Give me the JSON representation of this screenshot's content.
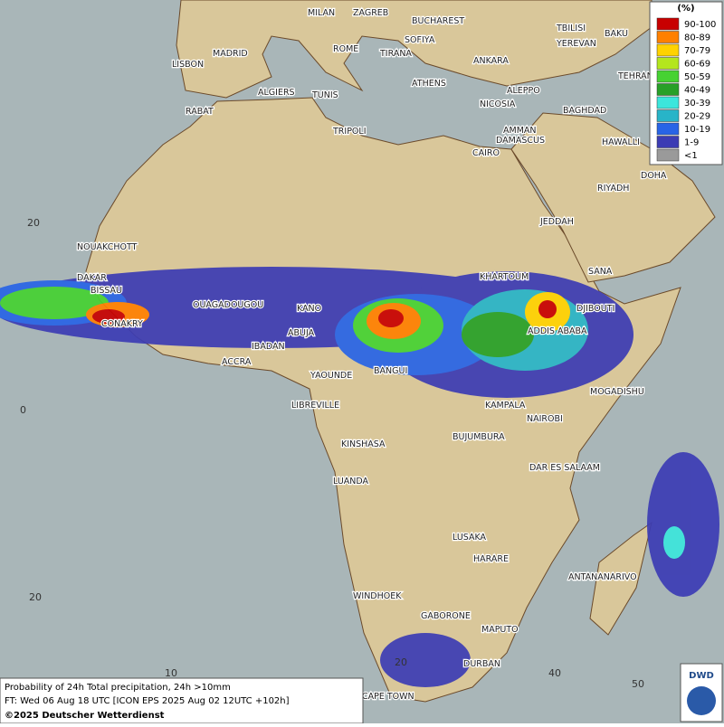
{
  "map": {
    "legend": {
      "title": "(%)",
      "items": [
        {
          "label": "90-100",
          "color": "#c80000"
        },
        {
          "label": "80-89",
          "color": "#ff8000"
        },
        {
          "label": "70-79",
          "color": "#ffd200"
        },
        {
          "label": "60-69",
          "color": "#b4e61e"
        },
        {
          "label": "50-59",
          "color": "#46d232"
        },
        {
          "label": "40-49",
          "color": "#28a028"
        },
        {
          "label": "30-39",
          "color": "#3ce6dc"
        },
        {
          "label": "20-29",
          "color": "#28b4c8"
        },
        {
          "label": "10-19",
          "color": "#2864e6"
        },
        {
          "label": "1-9",
          "color": "#3c3cb4"
        },
        {
          "label": "<1",
          "color": "#9a9a9a"
        }
      ]
    },
    "cities": [
      "MILAN",
      "ZAGREB",
      "BUCHAREST",
      "TBILISI",
      "BAKU",
      "SOFIYA",
      "YEREVAN",
      "ROME",
      "TIRANA",
      "ANKARA",
      "LISBON",
      "MADRID",
      "ATHENS",
      "TEHRAN",
      "ALGIERS",
      "TUNIS",
      "ALEPPO",
      "RABAT",
      "NICOSIA",
      "BAGHDAD",
      "TRIPOLI",
      "DAMASCUS",
      "AMMAN",
      "HAWALLI",
      "CAIRO",
      "DOHA",
      "RIYADH",
      "JEDDAH",
      "NOUAKCHOTT",
      "SANA",
      "DAKAR",
      "KHARTOUM",
      "BISSAU",
      "OUAGADOUGOU",
      "DJIBOUTI",
      "CONAKRY",
      "KANO",
      "ABUJA",
      "ADDIS ABABA",
      "IBADAN",
      "ACCRA",
      "YAOUNDE",
      "BANGUI",
      "MOGADISHU",
      "LIBREVILLE",
      "KAMPALA",
      "NAIROBI",
      "KINSHASA",
      "BUJUMBURA",
      "DAR ES SALAAM",
      "LUANDA",
      "LUSAKA",
      "HARARE",
      "ANTANANARIVO",
      "WINDHOEK",
      "GABORONE",
      "MAPUTO",
      "DURBAN",
      "CAPE TOWN"
    ],
    "latitude_labels": [
      "20",
      "0",
      "20"
    ],
    "longitude_labels": [
      "10",
      "20",
      "40",
      "50"
    ],
    "footer": {
      "line1": "Probability of 24h Total precipitation, 24h >10mm",
      "line2": "FT: Wed 06 Aug 18 UTC [ICON EPS 2025 Aug 02 12UTC +102h]",
      "line3": "©2025 Deutscher Wetterdienst"
    },
    "logo": "DWD"
  }
}
